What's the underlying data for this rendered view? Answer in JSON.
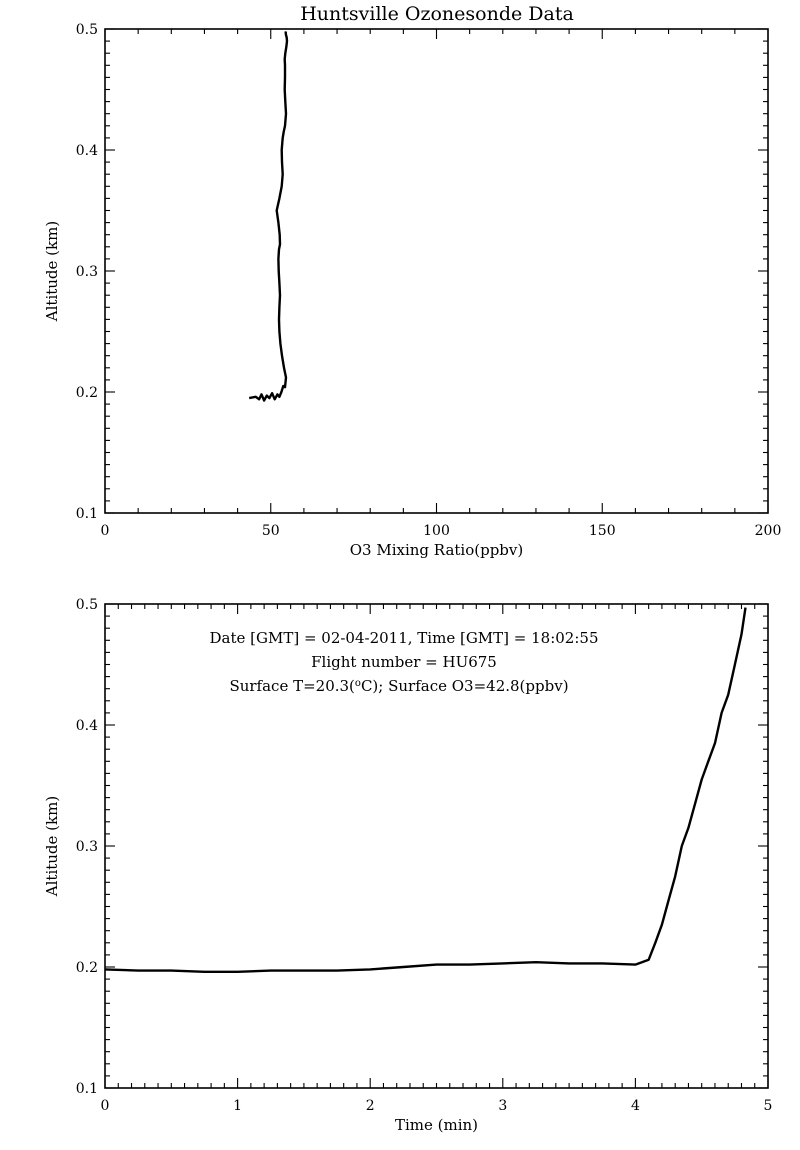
{
  "chart_data": [
    {
      "type": "line",
      "title": "Huntsville Ozonesonde Data",
      "xlabel": "O3 Mixing Ratio(ppbv)",
      "ylabel": "Altitude (km)",
      "xlim": [
        0,
        200
      ],
      "ylim": [
        0.1,
        0.5
      ],
      "xticks": [
        "0",
        "50",
        "100",
        "150",
        "200"
      ],
      "yticks": [
        "0.1",
        "0.2",
        "0.3",
        "0.4",
        "0.5"
      ],
      "grid": false,
      "series": [
        {
          "x": [
            43.5,
            45.5,
            46.5,
            47.2,
            48.0,
            48.8,
            49.6,
            50.4,
            51.2,
            52.0,
            52.6,
            53.2,
            53.8,
            54.3,
            54.6,
            54.0,
            53.4,
            52.9,
            52.6,
            52.5,
            52.6,
            52.8,
            52.6,
            52.4,
            52.3,
            52.5,
            52.8,
            52.7,
            52.3,
            51.8,
            52.6,
            53.3,
            53.6,
            53.4,
            53.3,
            53.6,
            53.9,
            54.3,
            54.6,
            54.4,
            54.2,
            54.3,
            54.3,
            54.2,
            54.4,
            54.7,
            54.9,
            54.8,
            54.6,
            54.5,
            54.6
          ],
          "y": [
            0.195,
            0.196,
            0.194,
            0.198,
            0.193,
            0.197,
            0.195,
            0.199,
            0.194,
            0.198,
            0.196,
            0.2,
            0.205,
            0.204,
            0.212,
            0.22,
            0.23,
            0.24,
            0.25,
            0.26,
            0.27,
            0.28,
            0.29,
            0.3,
            0.31,
            0.318,
            0.322,
            0.33,
            0.34,
            0.35,
            0.36,
            0.37,
            0.38,
            0.39,
            0.4,
            0.41,
            0.415,
            0.42,
            0.43,
            0.44,
            0.45,
            0.46,
            0.47,
            0.475,
            0.48,
            0.485,
            0.49,
            0.493,
            0.495,
            0.497,
            0.498
          ]
        }
      ]
    },
    {
      "type": "line",
      "title": "",
      "xlabel": "Time (min)",
      "ylabel": "Altitude (km)",
      "xlim": [
        0,
        5
      ],
      "ylim": [
        0.1,
        0.5
      ],
      "xticks": [
        "0",
        "1",
        "2",
        "3",
        "4",
        "5"
      ],
      "yticks": [
        "0.1",
        "0.2",
        "0.3",
        "0.4",
        "0.5"
      ],
      "grid": false,
      "annotations": [
        "Date [GMT] = 02-04-2011,  Time [GMT] = 18:02:55",
        "Flight number = HU675"
      ],
      "annotation_surface": {
        "prefix": "Surface T=20.3(",
        "superscript": "o",
        "suffix": "C); Surface O3=42.8(ppbv)"
      },
      "series": [
        {
          "x": [
            0.0,
            0.25,
            0.5,
            0.75,
            1.0,
            1.25,
            1.5,
            1.75,
            2.0,
            2.25,
            2.5,
            2.75,
            3.0,
            3.25,
            3.5,
            3.75,
            4.0,
            4.1,
            4.15,
            4.2,
            4.25,
            4.3,
            4.35,
            4.4,
            4.45,
            4.5,
            4.55,
            4.6,
            4.65,
            4.7,
            4.75,
            4.8,
            4.83
          ],
          "y": [
            0.198,
            0.197,
            0.197,
            0.196,
            0.196,
            0.197,
            0.197,
            0.197,
            0.198,
            0.2,
            0.202,
            0.202,
            0.203,
            0.204,
            0.203,
            0.203,
            0.202,
            0.206,
            0.22,
            0.235,
            0.255,
            0.275,
            0.3,
            0.315,
            0.335,
            0.355,
            0.37,
            0.385,
            0.41,
            0.425,
            0.45,
            0.475,
            0.497
          ]
        }
      ]
    }
  ]
}
